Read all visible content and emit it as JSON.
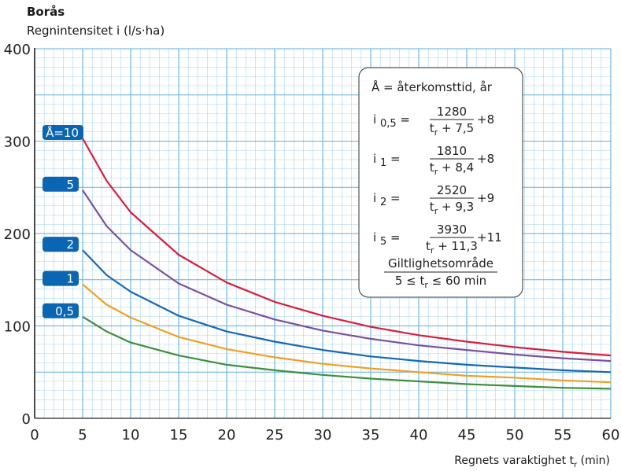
{
  "chart_data": {
    "type": "line",
    "title": "Borås",
    "ylabel": "Regnintensitet i (l/s·ha)",
    "xlabel": {
      "text": "Regnets varaktighet t",
      "sub": "r",
      "unit": "(min)"
    },
    "xlim": [
      0,
      60
    ],
    "ylim": [
      0,
      400
    ],
    "xticks": [
      "0",
      "5",
      "10",
      "15",
      "20",
      "25",
      "30",
      "35",
      "40",
      "45",
      "50",
      "55",
      "60"
    ],
    "yticks": [
      "0",
      "100",
      "200",
      "300",
      "400"
    ],
    "grid": true,
    "x": [
      5,
      7.5,
      10,
      15,
      20,
      25,
      30,
      35,
      40,
      45,
      50,
      55,
      60
    ],
    "series": [
      {
        "name": "Å=10",
        "color": "#d81e3c",
        "values": [
          303,
          257,
          223,
          177,
          147,
          126,
          111,
          99,
          90,
          83,
          77,
          72,
          68
        ]
      },
      {
        "name": "5",
        "color": "#7b4ea0",
        "values": [
          247,
          208,
          182,
          146,
          123,
          107,
          95,
          86,
          79,
          74,
          69,
          65,
          62
        ]
      },
      {
        "name": "2",
        "color": "#1868b2",
        "values": [
          182,
          155,
          137,
          111,
          94,
          83,
          74,
          67,
          62,
          58,
          55,
          52,
          50
        ]
      },
      {
        "name": "1",
        "color": "#f0a020",
        "values": [
          145,
          123,
          109,
          88,
          75,
          66,
          59,
          54,
          50,
          46,
          44,
          41,
          39
        ]
      },
      {
        "name": "0,5",
        "color": "#3d8f3d",
        "values": [
          110,
          94,
          82,
          68,
          58,
          52,
          47,
          43,
          40,
          37,
          35,
          33,
          32
        ]
      }
    ],
    "legend_placement": "left",
    "formula_box": {
      "header": "Å = återkomsttid, år",
      "formulas": [
        {
          "lhs": "i",
          "sub": "0,5",
          "eq": "=",
          "num": "1280",
          "den_pre": "t",
          "den_sub": "r",
          "den_post": " + 7,5",
          "tail": "+8"
        },
        {
          "lhs": "i",
          "sub": "1",
          "eq": "=",
          "num": "1810",
          "den_pre": "t",
          "den_sub": "r",
          "den_post": " + 8,4",
          "tail": "+8"
        },
        {
          "lhs": "i",
          "sub": "2",
          "eq": "=",
          "num": "2520",
          "den_pre": "t",
          "den_sub": "r",
          "den_post": " + 9,3",
          "tail": "+9"
        },
        {
          "lhs": "i",
          "sub": "5",
          "eq": "=",
          "num": "3930",
          "den_pre": "t",
          "den_sub": "r",
          "den_post": " + 11,3",
          "tail": "+11"
        }
      ],
      "validity_title": "Giltlighetsområde",
      "validity_range": {
        "pre": "5 ≤ t",
        "sub": "r",
        "post": " ≤ 60 min"
      }
    }
  }
}
